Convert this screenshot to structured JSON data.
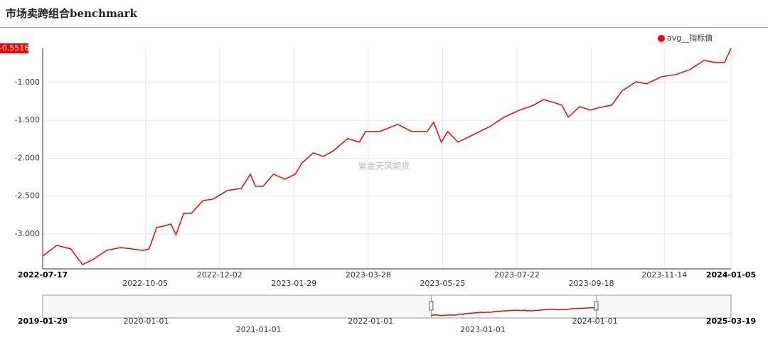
{
  "chart_data": {
    "type": "line",
    "title": "市场卖跨组合benchmark",
    "watermark": "紫金天风期货",
    "max_marker": -0.5516,
    "x": [
      "2022-07-17",
      "2022-07-28",
      "2022-08-08",
      "2022-08-17",
      "2022-08-25",
      "2022-09-05",
      "2022-09-16",
      "2022-10-03",
      "2022-10-08",
      "2022-10-14",
      "2022-10-19",
      "2022-10-25",
      "2022-10-29",
      "2022-11-04",
      "2022-11-10",
      "2022-11-19",
      "2022-11-27",
      "2022-12-08",
      "2022-12-19",
      "2022-12-26",
      "2022-12-30",
      "2023-01-05",
      "2023-01-13",
      "2023-01-22",
      "2023-01-30",
      "2023-02-04",
      "2023-02-13",
      "2023-02-21",
      "2023-03-01",
      "2023-03-12",
      "2023-03-21",
      "2023-03-26",
      "2023-04-06",
      "2023-04-20",
      "2023-05-01",
      "2023-05-13",
      "2023-05-18",
      "2023-05-24",
      "2023-05-29",
      "2023-06-06",
      "2023-06-15",
      "2023-07-01",
      "2023-07-12",
      "2023-07-24",
      "2023-08-04",
      "2023-08-12",
      "2023-08-26",
      "2023-08-31",
      "2023-09-09",
      "2023-09-17",
      "2023-09-23",
      "2023-10-04",
      "2023-10-12",
      "2023-10-23",
      "2023-10-31",
      "2023-11-12",
      "2023-11-23",
      "2023-12-04",
      "2023-12-15",
      "2023-12-23",
      "2023-12-31",
      "2024-01-05"
    ],
    "series": [
      {
        "name": "avg__指标值",
        "color": "#ff0000",
        "values": [
          -3.291,
          -3.15,
          -3.197,
          -3.404,
          -3.338,
          -3.216,
          -3.179,
          -3.216,
          -3.197,
          -2.915,
          -2.897,
          -2.869,
          -3.009,
          -2.728,
          -2.728,
          -2.559,
          -2.54,
          -2.427,
          -2.399,
          -2.211,
          -2.371,
          -2.371,
          -2.211,
          -2.277,
          -2.211,
          -2.07,
          -1.93,
          -1.977,
          -1.901,
          -1.742,
          -1.789,
          -1.648,
          -1.648,
          -1.554,
          -1.648,
          -1.648,
          -1.526,
          -1.789,
          -1.648,
          -1.789,
          -1.714,
          -1.582,
          -1.46,
          -1.366,
          -1.3,
          -1.225,
          -1.3,
          -1.46,
          -1.319,
          -1.366,
          -1.338,
          -1.3,
          -1.113,
          -0.991,
          -1.019,
          -0.925,
          -0.897,
          -0.831,
          -0.709,
          -0.737,
          -0.737,
          -0.5516
        ]
      }
    ],
    "xlim": [
      "2022-07-17",
      "2024-01-05"
    ],
    "xticks": [
      "2022-07-17",
      "2022-10-05",
      "2022-12-02",
      "2023-01-29",
      "2023-03-28",
      "2023-05-25",
      "2023-07-22",
      "2023-09-18",
      "2023-11-14",
      "2024-01-05"
    ],
    "ylim": [
      -3.46,
      -0.5516
    ],
    "yticks": [
      {
        "value": -3,
        "label": "-3.000"
      },
      {
        "value": -2.5,
        "label": "-2.500"
      },
      {
        "value": -2,
        "label": "-2.000"
      },
      {
        "value": -1.5,
        "label": "-1.500"
      },
      {
        "value": -1,
        "label": "-1.000"
      }
    ],
    "grid": true,
    "legend": "top-right",
    "zoom": {
      "xlim": [
        "2019-01-29",
        "2025-03-19"
      ],
      "xticks": [
        "2019-01-29",
        "2020-01-01",
        "2021-01-01",
        "2022-01-01",
        "2023-01-01",
        "2024-01-01",
        "2025-03-19"
      ],
      "window": [
        "2022-07-17",
        "2024-01-05"
      ]
    }
  }
}
